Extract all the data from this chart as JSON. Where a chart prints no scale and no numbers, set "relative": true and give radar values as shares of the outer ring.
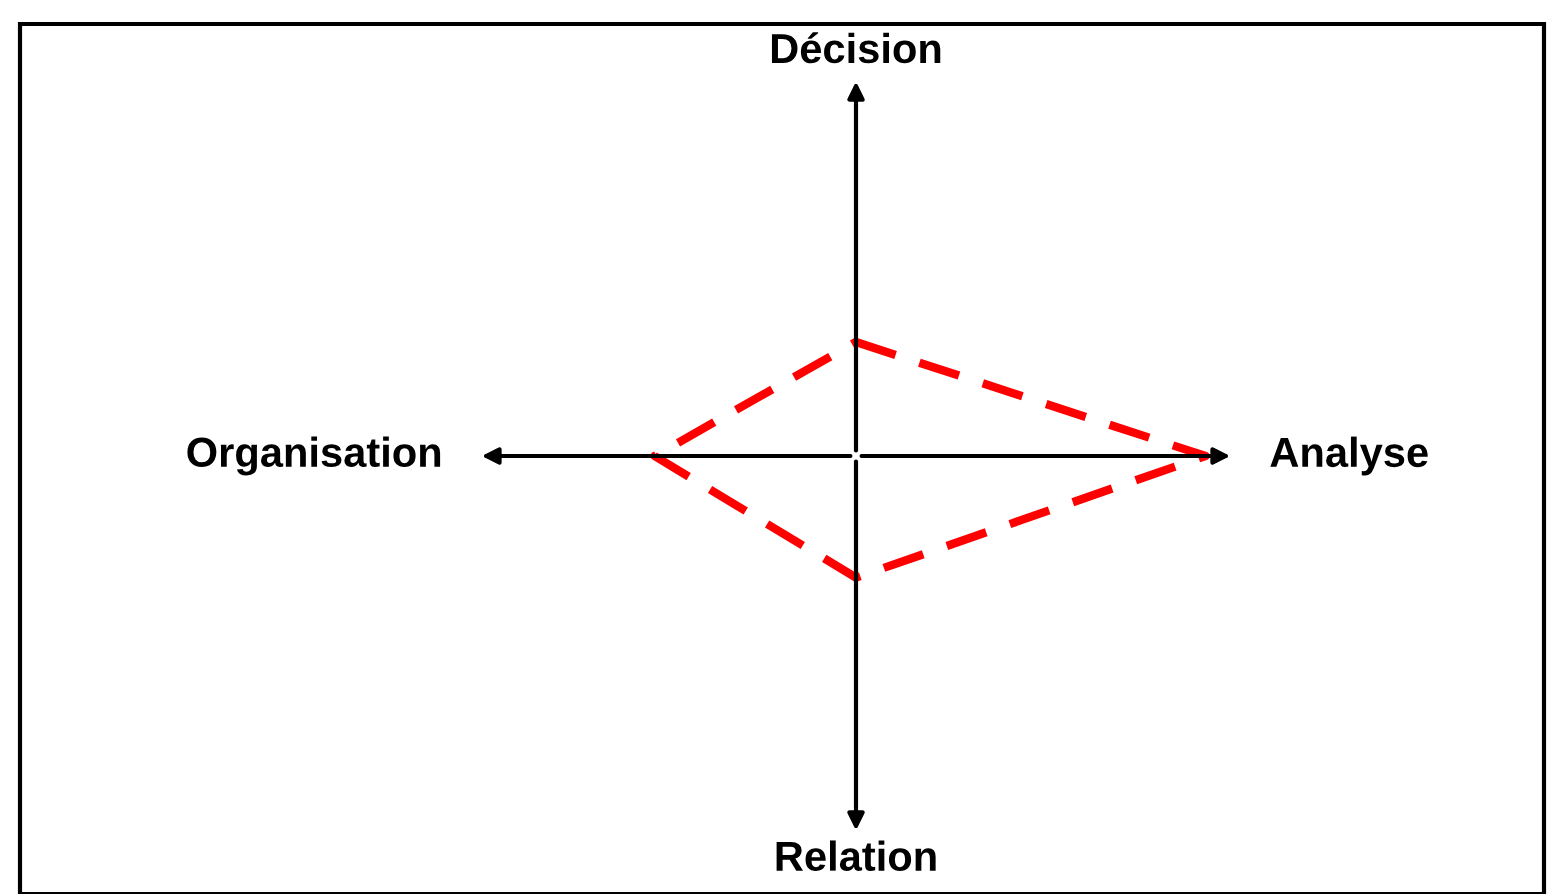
{
  "chart_data": {
    "type": "radar",
    "relative": true,
    "line_style": "dashed",
    "categories": [
      "Décision",
      "Analyse",
      "Relation",
      "Organisation"
    ],
    "series": [
      {
        "color": "#ff0000",
        "values": [
          0.3,
          0.92,
          0.32,
          0.53
        ]
      }
    ]
  }
}
